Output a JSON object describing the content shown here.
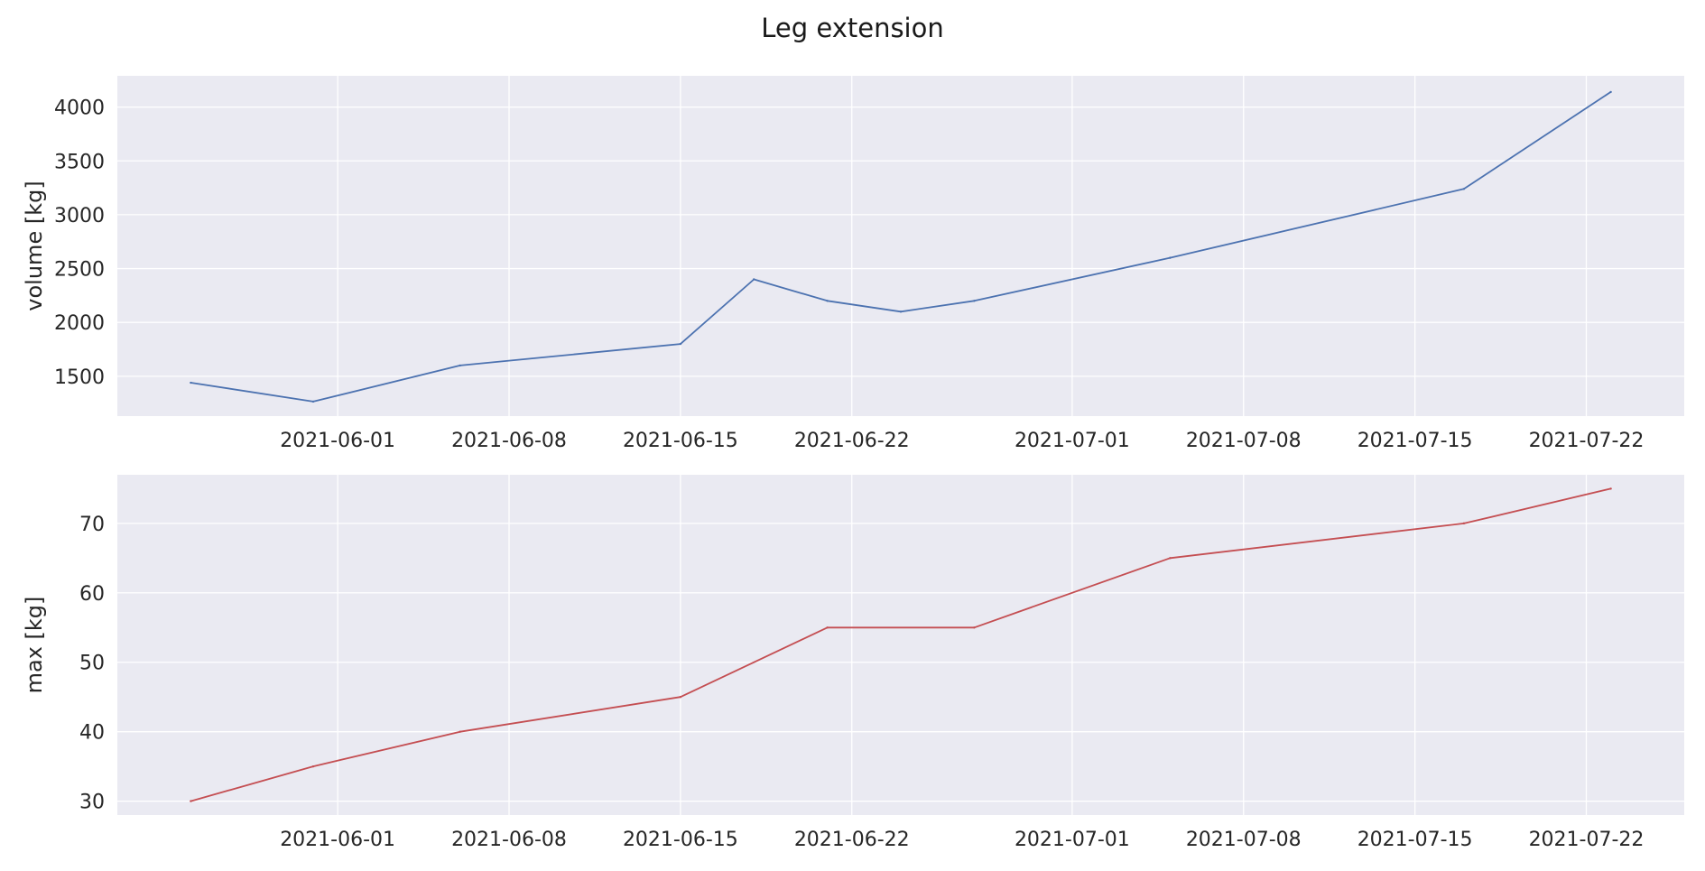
{
  "chart_data": {
    "title": "Leg extension",
    "type": "line",
    "x_axis": {
      "kind": "date",
      "range": [
        "2021-05-23",
        "2021-07-26"
      ],
      "ticks": [
        "2021-06-01",
        "2021-06-08",
        "2021-06-15",
        "2021-06-22",
        "2021-07-01",
        "2021-07-08",
        "2021-07-15",
        "2021-07-22"
      ]
    },
    "grid": true,
    "background": "#eaeaf2",
    "grid_color": "#ffffff",
    "panels": [
      {
        "name": "volume",
        "ylabel": "volume [kg]",
        "ylim": [
          1130,
          4290
        ],
        "yticks": [
          1500,
          2000,
          2500,
          3000,
          3500,
          4000
        ],
        "color": "#4c72b0",
        "points": [
          {
            "x": "2021-05-26",
            "y": 1440
          },
          {
            "x": "2021-05-31",
            "y": 1265
          },
          {
            "x": "2021-06-06",
            "y": 1600
          },
          {
            "x": "2021-06-15",
            "y": 1800
          },
          {
            "x": "2021-06-18",
            "y": 2400
          },
          {
            "x": "2021-06-21",
            "y": 2200
          },
          {
            "x": "2021-06-24",
            "y": 2100
          },
          {
            "x": "2021-06-27",
            "y": 2200
          },
          {
            "x": "2021-07-05",
            "y": 2600
          },
          {
            "x": "2021-07-17",
            "y": 3240
          },
          {
            "x": "2021-07-23",
            "y": 4140
          }
        ]
      },
      {
        "name": "max",
        "ylabel": "max [kg]",
        "ylim": [
          28,
          77
        ],
        "yticks": [
          30,
          40,
          50,
          60,
          70
        ],
        "color": "#c44e52",
        "points": [
          {
            "x": "2021-05-26",
            "y": 30
          },
          {
            "x": "2021-05-31",
            "y": 35
          },
          {
            "x": "2021-06-06",
            "y": 40
          },
          {
            "x": "2021-06-15",
            "y": 45
          },
          {
            "x": "2021-06-21",
            "y": 55
          },
          {
            "x": "2021-06-27",
            "y": 55
          },
          {
            "x": "2021-07-05",
            "y": 65
          },
          {
            "x": "2021-07-17",
            "y": 70
          },
          {
            "x": "2021-07-23",
            "y": 75
          }
        ]
      }
    ]
  }
}
